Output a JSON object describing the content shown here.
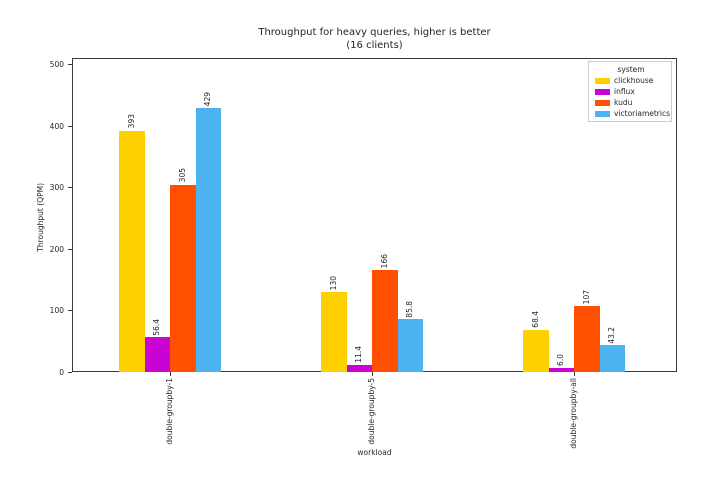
{
  "chart_data": {
    "type": "bar",
    "title": "Throughput for heavy queries, higher is better",
    "subtitle": "(16 clients)",
    "xlabel": "workload",
    "ylabel": "Throughput (QPM)",
    "ylim": [
      0,
      511
    ],
    "yticks": [
      0,
      100,
      200,
      300,
      400,
      500
    ],
    "grid": false,
    "legend": {
      "title": "system",
      "position": "upper-right"
    },
    "categories": [
      "double-groupby-1",
      "double-groupby-5",
      "double-groupby-all"
    ],
    "series": [
      {
        "name": "clickhouse",
        "color": "#FFD000",
        "values": [
          393,
          130,
          68.4
        ],
        "labels": [
          "393",
          "130",
          "68.4"
        ]
      },
      {
        "name": "influx",
        "color": "#C903D4",
        "values": [
          56.4,
          11.4,
          6.0
        ],
        "labels": [
          "56.4",
          "11.4",
          "6.0"
        ]
      },
      {
        "name": "kudu",
        "color": "#FF5000",
        "values": [
          305,
          166,
          107
        ],
        "labels": [
          "305",
          "166",
          "107"
        ]
      },
      {
        "name": "victoriametrics",
        "color": "#4DB2F0",
        "values": [
          429,
          85.8,
          43.2
        ],
        "labels": [
          "429",
          "85.8",
          "43.2"
        ]
      }
    ]
  }
}
